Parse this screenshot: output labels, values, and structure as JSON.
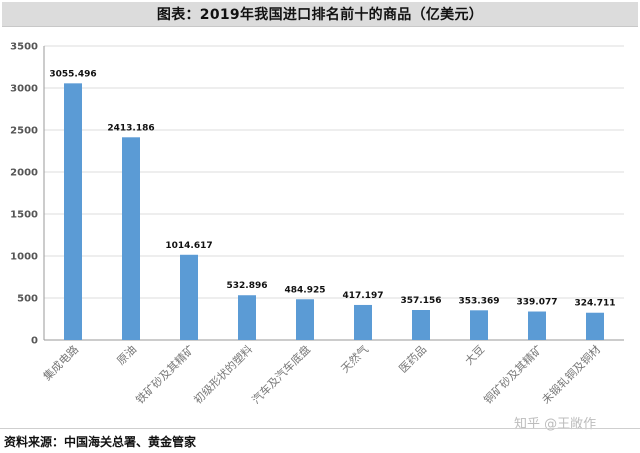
{
  "title": "图表：2019年我国进口排名前十的商品（亿美元）",
  "source": "资料来源：中国海关总署、黄金管家",
  "watermark": "知乎 @王敞作",
  "colors": {
    "bar": "#5b9bd5",
    "grid": "#dddddd",
    "axis": "#9a9a9a"
  },
  "chart_data": {
    "type": "bar",
    "title": "图表：2019年我国进口排名前十的商品（亿美元）",
    "xlabel": "",
    "ylabel": "",
    "ylim": [
      0,
      3500
    ],
    "yticks": [
      0,
      500,
      1000,
      1500,
      2000,
      2500,
      3000,
      3500
    ],
    "grid": true,
    "legend": "none",
    "categories": [
      "集成电路",
      "原油",
      "铁矿砂及其精矿",
      "初级形状的塑料",
      "汽车及汽车底盘",
      "天然气",
      "医药品",
      "大豆",
      "铜矿砂及其精矿",
      "未锻轧铜及铜材"
    ],
    "values": [
      3055.496,
      2413.186,
      1014.617,
      532.896,
      484.925,
      417.197,
      357.156,
      353.369,
      339.077,
      324.711
    ],
    "value_labels": [
      "3055.496",
      "2413.186",
      "1014.617",
      "532.896",
      "484.925",
      "417.197",
      "357.156",
      "353.369",
      "339.077",
      "324.711"
    ]
  }
}
